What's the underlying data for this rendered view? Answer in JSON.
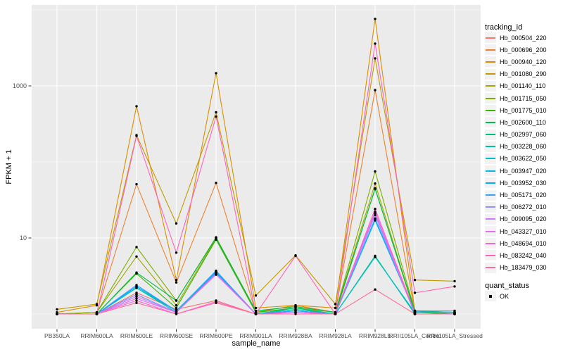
{
  "figure": {
    "panel_background": "#EBEBEB",
    "gridline_color": "#FFFFFF",
    "axis_tick_color": "#333333",
    "axis_text_color": "#4D4D4D",
    "axis_title_color": "#000000",
    "point_color": "#000000",
    "legend_key_background": "#F2F2F2"
  },
  "y_axis": {
    "title": "FPKM + 1",
    "ticks": [
      {
        "label": "1000",
        "value": 1000
      },
      {
        "label": "10",
        "value": 10
      }
    ],
    "minor_gridline_values": [
      10000,
      100,
      1
    ]
  },
  "x_axis": {
    "title": "sample_name"
  },
  "legend": {
    "tracking_title": "tracking_id",
    "quant_title": "quant_status",
    "quant_items": [
      {
        "label": "OK"
      }
    ]
  },
  "chart_data": {
    "type": "line",
    "title": "",
    "xlabel": "sample_name",
    "ylabel": "FPKM + 1",
    "y_scale": "log10",
    "ylim": [
      0.64,
      11000
    ],
    "grid": true,
    "legend_position": "right",
    "quant_status": "OK",
    "categories": [
      "PB350LA",
      "RRIM600LA",
      "RRIM600LE",
      "RRIM600SE",
      "RRIM600PE",
      "RRIM901LA",
      "RRIM928BA",
      "RRIM928LA",
      "RRIM928LE",
      "RRII105LA_Control",
      "RRII105LA_Stressed"
    ],
    "series": [
      {
        "name": "Hb_000504_220",
        "color": "#F8766D",
        "values": [
          1.0,
          1.0,
          1.9,
          1.15,
          1.5,
          1.0,
          1.1,
          1.0,
          24,
          1.05,
          1.0
        ]
      },
      {
        "name": "Hb_000696_200",
        "color": "#EA8331",
        "values": [
          1.0,
          1.05,
          51,
          2.6,
          53,
          1.05,
          1.3,
          1.05,
          880,
          1.05,
          1.05
        ]
      },
      {
        "name": "Hb_000940_120",
        "color": "#D89000",
        "values": [
          1.05,
          1.3,
          540,
          2.8,
          1470,
          1.2,
          1.3,
          1.2,
          7600,
          1.1,
          1.1
        ]
      },
      {
        "name": "Hb_001080_290",
        "color": "#C09B00",
        "values": [
          1.15,
          1.35,
          225,
          15.5,
          450,
          1.75,
          5.9,
          1.35,
          2300,
          2.8,
          2.7
        ]
      },
      {
        "name": "Hb_001140_110",
        "color": "#A3A500",
        "values": [
          1.0,
          1.05,
          5.7,
          1.3,
          9.8,
          1.05,
          1.2,
          1.05,
          52,
          1.05,
          1.05
        ]
      },
      {
        "name": "Hb_001715_050",
        "color": "#7CAE00",
        "values": [
          1.0,
          1.05,
          7.6,
          1.5,
          10.2,
          1.1,
          1.25,
          1.05,
          75,
          1.1,
          1.05
        ]
      },
      {
        "name": "Hb_001775_010",
        "color": "#39B600",
        "values": [
          1.0,
          1.0,
          3.4,
          1.2,
          9.5,
          1.05,
          1.2,
          1.0,
          45,
          1.05,
          1.0
        ]
      },
      {
        "name": "Hb_002600_110",
        "color": "#00BB4E",
        "values": [
          1.0,
          1.0,
          3.5,
          1.5,
          10.0,
          1.1,
          1.25,
          1.05,
          44,
          1.1,
          1.05
        ]
      },
      {
        "name": "Hb_002997_060",
        "color": "#00BF7D",
        "values": [
          1.0,
          1.0,
          2.2,
          1.1,
          3.6,
          1.0,
          1.2,
          1.0,
          5.8,
          1.0,
          1.0
        ]
      },
      {
        "name": "Hb_003228_060",
        "color": "#00C1A3",
        "values": [
          1.0,
          1.0,
          2.3,
          1.1,
          3.5,
          1.0,
          1.15,
          1.0,
          5.7,
          1.0,
          1.0
        ]
      },
      {
        "name": "Hb_003622_050",
        "color": "#00BFC4",
        "values": [
          1.0,
          1.0,
          2.2,
          1.05,
          3.4,
          1.0,
          1.1,
          1.0,
          5.6,
          1.05,
          1.05
        ]
      },
      {
        "name": "Hb_003947_020",
        "color": "#00BAE0",
        "values": [
          1.0,
          1.0,
          1.8,
          1.05,
          3.5,
          1.0,
          1.1,
          1.0,
          17,
          1.05,
          1.05
        ]
      },
      {
        "name": "Hb_003952_030",
        "color": "#00B0F6",
        "values": [
          1.0,
          1.0,
          2.3,
          1.1,
          3.6,
          1.0,
          1.1,
          1.0,
          17.5,
          1.07,
          1.06
        ]
      },
      {
        "name": "Hb_005171_020",
        "color": "#35A2FF",
        "values": [
          1.0,
          1.0,
          2.4,
          1.1,
          3.7,
          1.0,
          1.1,
          1.0,
          18,
          1.07,
          1.05
        ]
      },
      {
        "name": "Hb_006272_010",
        "color": "#9590FF",
        "values": [
          1.0,
          1.0,
          1.8,
          1.05,
          3.3,
          1.0,
          1.05,
          1.0,
          20,
          1.0,
          1.0
        ]
      },
      {
        "name": "Hb_009095_020",
        "color": "#C77CFF",
        "values": [
          1.0,
          1.0,
          1.7,
          1.05,
          3.3,
          1.0,
          1.05,
          1.0,
          21,
          1.0,
          1.0
        ]
      },
      {
        "name": "Hb_043327_010",
        "color": "#E76BF3",
        "values": [
          1.0,
          1.0,
          1.6,
          1.05,
          3.4,
          1.0,
          1.05,
          1.0,
          22,
          1.0,
          1.0
        ]
      },
      {
        "name": "Hb_048694_010",
        "color": "#FA62DB",
        "values": [
          1.0,
          1.0,
          1.5,
          1.0,
          1.45,
          1.0,
          1.05,
          1.0,
          24,
          1.0,
          1.0
        ]
      },
      {
        "name": "Hb_083242_040",
        "color": "#FF62BC",
        "values": [
          1.0,
          1.0,
          220,
          6.4,
          395,
          1.0,
          5.8,
          1.0,
          3600,
          1.9,
          2.3
        ]
      },
      {
        "name": "Hb_183479_030",
        "color": "#FF6A98",
        "values": [
          1.0,
          1.0,
          1.4,
          1.0,
          1.4,
          1.0,
          1.0,
          1.0,
          2.1,
          1.0,
          1.0
        ]
      }
    ]
  }
}
